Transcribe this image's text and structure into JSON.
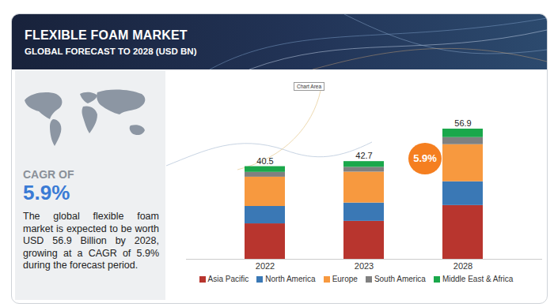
{
  "chart_data": {
    "type": "bar",
    "stacked": true,
    "title": "FLEXIBLE FOAM MARKET",
    "subtitle": "GLOBAL FORECAST TO 2028 (USD BN)",
    "categories": [
      "2022",
      "2023",
      "2028"
    ],
    "series": [
      {
        "name": "Asia Pacific",
        "color": "#b8352e",
        "values": [
          15.5,
          16.6,
          23.5
        ]
      },
      {
        "name": "North America",
        "color": "#3a78b5",
        "values": [
          7.6,
          8.0,
          10.4
        ]
      },
      {
        "name": "Europe",
        "color": "#f7993f",
        "values": [
          12.8,
          13.5,
          16.2
        ]
      },
      {
        "name": "South America",
        "color": "#808080",
        "values": [
          2.1,
          2.1,
          3.1
        ]
      },
      {
        "name": "Middle East & Africa",
        "color": "#1aa84b",
        "values": [
          2.5,
          2.5,
          3.7
        ]
      }
    ],
    "totals": [
      40.5,
      42.7,
      56.9
    ],
    "ylim": [
      0,
      60
    ],
    "tick_labels": "x",
    "legend": "bottom",
    "annotations": [
      {
        "text": "5.9%"
      },
      {
        "text": "Chart Area"
      }
    ]
  },
  "panel": {
    "cagr_heading": "CAGR OF",
    "cagr_value": "5.9%",
    "description": "The global flexible foam market is expected to be worth USD 56.9 Billion by 2028, growing at a CAGR of 5.9% during the forecast period."
  }
}
